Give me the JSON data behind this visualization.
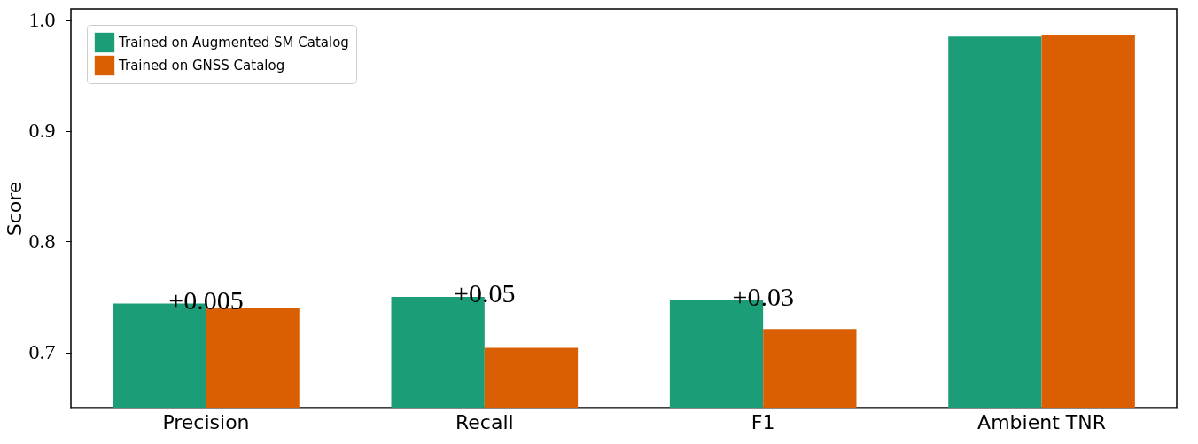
{
  "chart_data": {
    "type": "bar",
    "ylabel": "Score",
    "categories": [
      "Precision",
      "Recall",
      "F1",
      "Ambient TNR"
    ],
    "series": [
      {
        "name": "Trained on Augmented SM Catalog",
        "color": "#1b9e77",
        "values": [
          0.744,
          0.75,
          0.747,
          0.985
        ]
      },
      {
        "name": "Trained on GNSS Catalog",
        "color": "#d95f02",
        "values": [
          0.74,
          0.704,
          0.721,
          0.986
        ]
      }
    ],
    "ylim": [
      0.65,
      1.01
    ],
    "yticks": [
      {
        "value": 0.7,
        "label": "0.7"
      },
      {
        "value": 0.8,
        "label": "0.8"
      },
      {
        "value": 0.9,
        "label": "0.9"
      },
      {
        "value": 1.0,
        "label": "1.0"
      }
    ],
    "annotations": [
      {
        "text": "+0.005",
        "x": "Precision",
        "y": 0.744
      },
      {
        "text": "+0.05",
        "x": "Recall",
        "y": 0.75
      },
      {
        "text": "+0.03",
        "x": "F1",
        "y": 0.747
      }
    ],
    "grid": false,
    "legend": "top left"
  }
}
